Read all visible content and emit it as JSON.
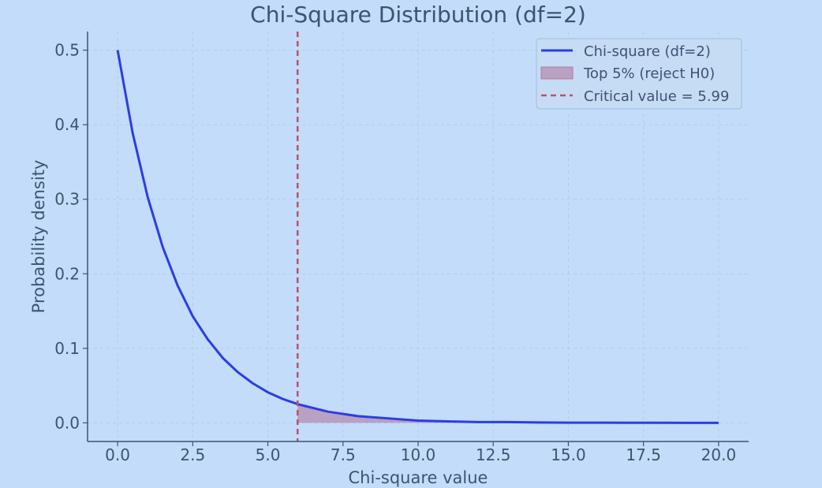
{
  "chart_data": {
    "type": "line",
    "title": "Chi-Square Distribution (df=2)",
    "xlabel": "Chi-square value",
    "ylabel": "Probability density",
    "xlim": [
      -1.0,
      21.0
    ],
    "ylim": [
      -0.025,
      0.525
    ],
    "xticks": [
      0.0,
      2.5,
      5.0,
      7.5,
      10.0,
      12.5,
      15.0,
      17.5,
      20.0
    ],
    "xtick_labels": [
      "0.0",
      "2.5",
      "5.0",
      "7.5",
      "10.0",
      "12.5",
      "15.0",
      "17.5",
      "20.0"
    ],
    "yticks": [
      0.0,
      0.1,
      0.2,
      0.3,
      0.4,
      0.5
    ],
    "ytick_labels": [
      "0.0",
      "0.1",
      "0.2",
      "0.3",
      "0.4",
      "0.5"
    ],
    "grid": true,
    "legend_position": "top-right",
    "series": [
      {
        "name": "Chi-square (df=2)",
        "kind": "line",
        "color": "#2b3de6",
        "x": [
          0,
          0.5,
          1,
          1.5,
          2,
          2.5,
          3,
          3.5,
          4,
          4.5,
          5,
          5.5,
          6,
          7,
          8,
          9,
          10,
          11,
          12,
          13,
          14,
          15,
          16,
          17,
          18,
          19,
          20
        ],
        "y": [
          0.5,
          0.389,
          0.303,
          0.236,
          0.184,
          0.143,
          0.112,
          0.087,
          0.068,
          0.053,
          0.041,
          0.032,
          0.025,
          0.015,
          0.009,
          0.006,
          0.003,
          0.002,
          0.001,
          0.001,
          0.0005,
          0.0003,
          0.0002,
          0.0001,
          0.0001,
          0.0,
          0.0
        ]
      },
      {
        "name": "Top 5% (reject H0)",
        "kind": "area",
        "color": "#b07a9e",
        "x": [
          5.99,
          6.5,
          7,
          8,
          9,
          10,
          11,
          12,
          13,
          14,
          15,
          16,
          17,
          18,
          19,
          20
        ],
        "y": [
          0.025,
          0.019,
          0.015,
          0.009,
          0.006,
          0.003,
          0.002,
          0.001,
          0.001,
          0.0005,
          0.0003,
          0.0002,
          0.0001,
          0.0001,
          0.0,
          0.0
        ]
      },
      {
        "name": "Critical value = 5.99",
        "kind": "vline",
        "color": "#c0506a",
        "x": 5.99
      }
    ]
  }
}
